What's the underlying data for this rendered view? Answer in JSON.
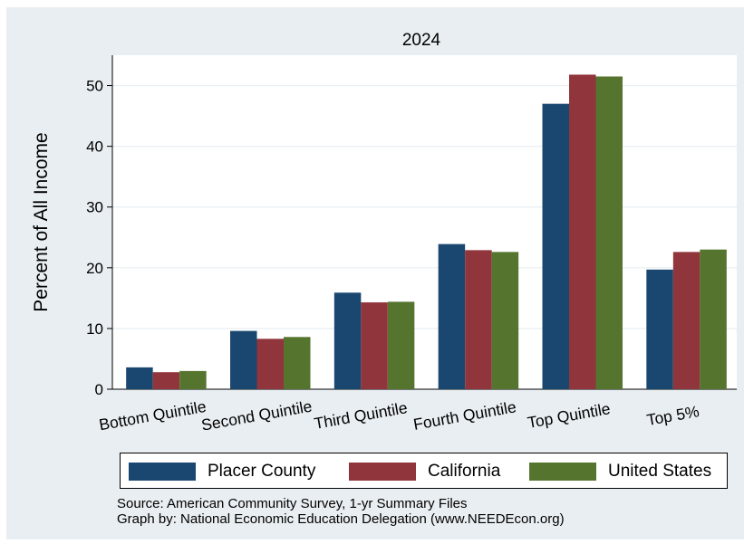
{
  "chart_data": {
    "type": "bar",
    "title": "2024",
    "xlabel": "",
    "ylabel": "Percent of All Income",
    "categories": [
      "Bottom Quintile",
      "Second Quintile",
      "Third Quintile",
      "Fourth Quintile",
      "Top Quintile",
      "Top 5%"
    ],
    "series": [
      {
        "name": "Placer County",
        "color": "#1a476f",
        "values": [
          3.6,
          9.6,
          15.9,
          23.9,
          47.0,
          19.7
        ]
      },
      {
        "name": "California",
        "color": "#90353b",
        "values": [
          2.8,
          8.3,
          14.3,
          22.9,
          51.8,
          22.6
        ]
      },
      {
        "name": "United States",
        "color": "#55752f",
        "values": [
          3.0,
          8.6,
          14.4,
          22.6,
          51.5,
          23.0
        ]
      }
    ],
    "ylim": [
      0,
      55
    ],
    "yticks": [
      0,
      10,
      20,
      30,
      40,
      50
    ],
    "grid": true,
    "legend_position": "bottom"
  },
  "notes": {
    "source": "Source: American Community Survey, 1-yr Summary Files",
    "graph_by": "Graph by: National Economic Education Delegation (www.NEEDEcon.org)"
  },
  "colors": {
    "background": "#e9eef2",
    "plot_area": "#ffffff",
    "grid": "#e9eef2"
  }
}
